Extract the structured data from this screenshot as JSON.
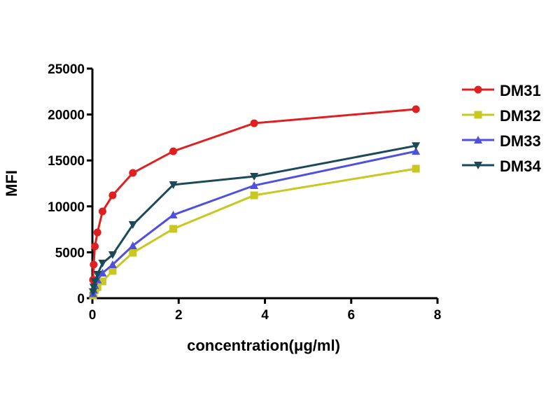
{
  "chart_data": {
    "type": "line",
    "xlabel": "concentration(μg/ml)",
    "ylabel": "MFI",
    "xlim": [
      0,
      8
    ],
    "ylim": [
      0,
      25000
    ],
    "xticks": [
      "0",
      "2",
      "4",
      "6",
      "8"
    ],
    "yticks": [
      "0",
      "5000",
      "10000",
      "15000",
      "20000",
      "25000"
    ],
    "legend_position": "right",
    "grid": false,
    "x": [
      0.0146,
      0.0293,
      0.0586,
      0.117,
      0.234,
      0.469,
      0.9375,
      1.875,
      3.75,
      7.5
    ],
    "series": [
      {
        "name": "DM31",
        "color": "#e02020",
        "marker": "circle",
        "values": [
          2000,
          3660,
          5640,
          7160,
          9450,
          11200,
          13640,
          16000,
          19050,
          20580
        ]
      },
      {
        "name": "DM32",
        "color": "#c8c820",
        "marker": "square",
        "values": [
          300,
          600,
          900,
          1200,
          1830,
          2970,
          4950,
          7550,
          11200,
          14100
        ]
      },
      {
        "name": "DM33",
        "color": "#5050e0",
        "marker": "triangle-up",
        "values": [
          500,
          900,
          1400,
          2000,
          2740,
          3660,
          5720,
          9070,
          12270,
          16000
        ]
      },
      {
        "name": "DM34",
        "color": "#1a4a5a",
        "marker": "triangle-down",
        "values": [
          700,
          1200,
          1800,
          2590,
          3810,
          4730,
          8000,
          12350,
          13260,
          16600
        ]
      }
    ]
  }
}
